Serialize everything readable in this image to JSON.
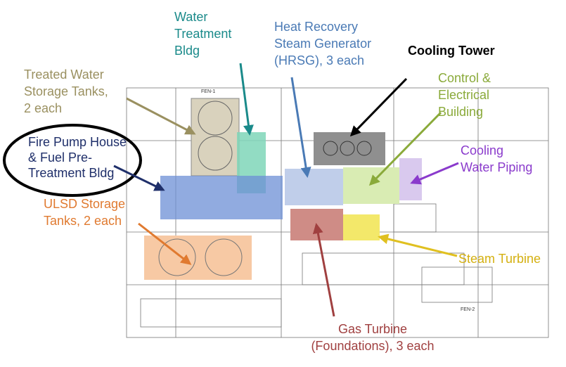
{
  "labels": [
    {
      "lines": [
        "Water",
        "Treatment",
        "Bldg"
      ]
    },
    {
      "lines": [
        "Heat Recovery",
        "Steam Generator",
        "(HRSG), 3 each"
      ]
    },
    {
      "lines": [
        "Cooling Tower"
      ]
    },
    {
      "lines": [
        "Treated Water",
        "Storage Tanks,",
        "2 each"
      ]
    },
    {
      "lines": [
        "Control &",
        "Electrical",
        "Building"
      ]
    },
    {
      "lines": [
        "Fire Pump House",
        "& Fuel Pre-",
        "Treatment Bldg"
      ]
    },
    {
      "lines": [
        "Cooling",
        "Water Piping"
      ]
    },
    {
      "lines": [
        "ULSD Storage",
        "Tanks, 2 each"
      ]
    },
    {
      "lines": [
        "Steam Turbine"
      ]
    },
    {
      "lines": [
        "Gas Turbine",
        "(Foundations), 3 each"
      ]
    }
  ],
  "plan_tags": [
    "FEN-1",
    "FEN-2"
  ]
}
